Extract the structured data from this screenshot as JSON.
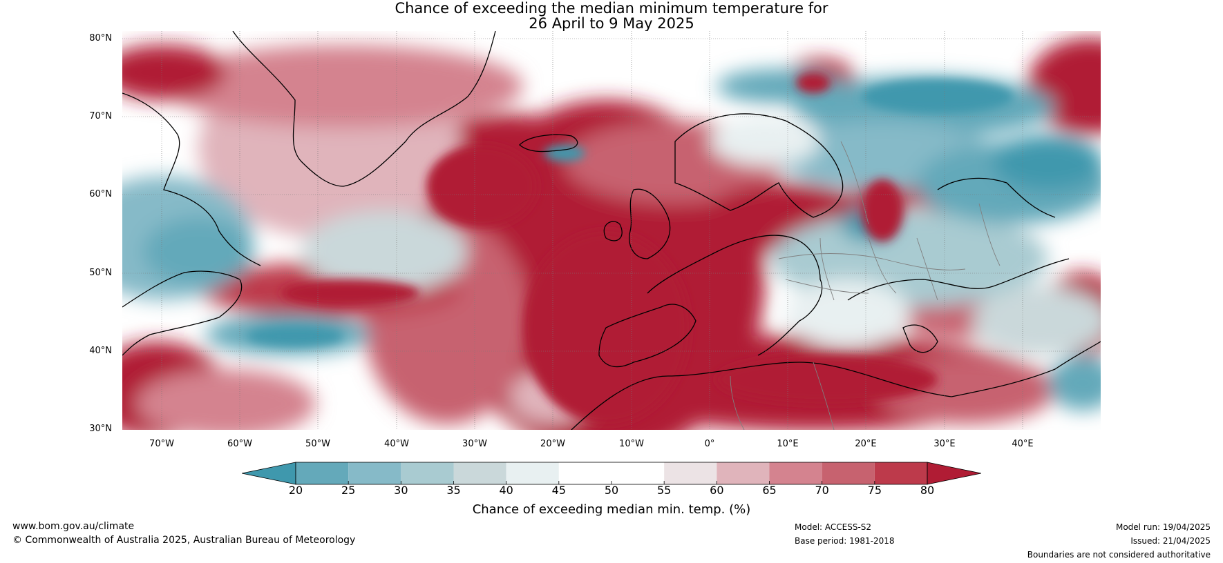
{
  "title": {
    "line1": "Chance of exceeding the median minimum temperature for",
    "line2": "26 April to 9 May 2025"
  },
  "map": {
    "lat_labels": [
      "80°N",
      "70°N",
      "60°N",
      "50°N",
      "40°N",
      "30°N"
    ],
    "lon_labels": [
      "70°W",
      "60°W",
      "50°W",
      "40°W",
      "30°W",
      "20°W",
      "10°W",
      "0°",
      "10°E",
      "20°E",
      "30°E",
      "40°E"
    ],
    "lat_range": [
      30,
      81
    ],
    "lon_range": [
      -75,
      50
    ],
    "gridlines": true,
    "colors": {
      "strong_warm": "#b01c34",
      "warm": "#cc5a6c",
      "mild_warm": "#e7b3bb",
      "neutral": "#ffffff",
      "mild_cool": "#c8dde2",
      "cool": "#5aa7b8",
      "strong_cool": "#3f98ad"
    }
  },
  "colorbar": {
    "ticks": [
      "20",
      "25",
      "30",
      "35",
      "40",
      "45",
      "50",
      "55",
      "60",
      "65",
      "70",
      "75",
      "80"
    ],
    "colors": [
      "#3f98ad",
      "#64a9ba",
      "#86bac8",
      "#a9cbd1",
      "#cad8da",
      "#e8f0f1",
      "#ffffff",
      "#ffffff",
      "#ece3e5",
      "#e0b4bb",
      "#d4838f",
      "#c7626f",
      "#bd3a4b",
      "#b01c34"
    ],
    "label": "Chance of exceeding median min. temp. (%)"
  },
  "footer": {
    "site": "www.bom.gov.au/climate",
    "copyright": "© Commonwealth of Australia 2025, Australian Bureau of Meteorology",
    "model": "Model: ACCESS-S2",
    "base_period": "Base period: 1981-2018",
    "model_run": "Model run: 19/04/2025",
    "issued": "Issued: 21/04/2025",
    "disclaimer": "Boundaries are not considered authoritative"
  }
}
